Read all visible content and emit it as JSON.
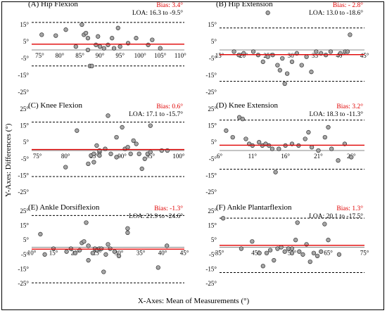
{
  "figure": {
    "y_axis_label": "Y-Axes: Differences (°)",
    "x_axis_label": "X-Axes: Mean of Measurements (°)"
  },
  "colors": {
    "bias": "#e00000",
    "point_fill": "#a6a6a6",
    "zero": "#888888"
  },
  "chart_data": [
    {
      "type": "scatter",
      "title": "(A) Hip Flexion",
      "bias_label": "Bias: 3.4°",
      "loa_label": "LOA: 16.3 to -9.5°",
      "bias": 3.4,
      "loa_upper": 16.3,
      "loa_lower": -9.5,
      "xlim": [
        73,
        111
      ],
      "ylim": [
        -25,
        25
      ],
      "x_ticks": [
        75,
        80,
        85,
        90,
        95,
        100,
        105,
        110
      ],
      "x_tick_labels": [
        "75°",
        "80°",
        "85°",
        "90°",
        "95°",
        "100°",
        "105°",
        "110°"
      ],
      "y_ticks": [
        15,
        5,
        -5,
        -15,
        -25
      ],
      "y_tick_labels": [
        "15°",
        "5°",
        "-5°",
        "-15°",
        "-25°"
      ],
      "points": [
        [
          75.5,
          9
        ],
        [
          79,
          8.5
        ],
        [
          81.5,
          12
        ],
        [
          84,
          2
        ],
        [
          85.5,
          15
        ],
        [
          86,
          9
        ],
        [
          86.5,
          10
        ],
        [
          87,
          7
        ],
        [
          87,
          0
        ],
        [
          87.5,
          -9.5
        ],
        [
          88,
          -9.5
        ],
        [
          89,
          3
        ],
        [
          89.5,
          8
        ],
        [
          90,
          2
        ],
        [
          91,
          1
        ],
        [
          92,
          3
        ],
        [
          93,
          7
        ],
        [
          93.5,
          1
        ],
        [
          94.5,
          13
        ],
        [
          95,
          2
        ],
        [
          97,
          4
        ],
        [
          99,
          7
        ],
        [
          102,
          3
        ],
        [
          103,
          6
        ],
        [
          105,
          1
        ]
      ]
    },
    {
      "type": "scatter",
      "title": "(B) Hip Extension",
      "bias_label": "Bias: - 2.8°",
      "loa_label": "LOA: 13.0 to -18.6°",
      "bias": -2.8,
      "loa_upper": 13.0,
      "loa_lower": -18.6,
      "xlim": [
        15,
        45
      ],
      "ylim": [
        -25,
        25
      ],
      "x_ticks": [
        15,
        20,
        25,
        30,
        35,
        40,
        45
      ],
      "x_tick_labels": [
        "15°",
        "20°",
        "25°",
        "30°",
        "35°",
        "40°",
        "45°"
      ],
      "y_ticks": [
        15,
        5,
        -5,
        -15,
        -25
      ],
      "y_tick_labels": [
        "15°",
        "5°",
        "-5°",
        "-15°",
        "-25°"
      ],
      "points": [
        [
          18,
          -1
        ],
        [
          19,
          -3
        ],
        [
          20,
          -2
        ],
        [
          22,
          -1
        ],
        [
          23,
          -3
        ],
        [
          24,
          -7
        ],
        [
          25,
          -4
        ],
        [
          26,
          -3
        ],
        [
          27,
          -9
        ],
        [
          27.5,
          -12
        ],
        [
          28,
          -5
        ],
        [
          28.5,
          -20
        ],
        [
          29,
          -14
        ],
        [
          30,
          -7
        ],
        [
          31,
          -2
        ],
        [
          32,
          -9
        ],
        [
          33,
          -4
        ],
        [
          34,
          -13
        ],
        [
          35,
          -1
        ],
        [
          36,
          -2
        ],
        [
          37,
          -3
        ],
        [
          38,
          -1
        ],
        [
          40,
          -2
        ],
        [
          41,
          -1
        ],
        [
          41.5,
          -1
        ],
        [
          42,
          9
        ],
        [
          25,
          22
        ]
      ]
    },
    {
      "type": "scatter",
      "title": "(C) Knee Flexion",
      "bias_label": "Bias: 0.6°",
      "loa_label": "LOA: 17.1 to -15.7°",
      "bias": 0.6,
      "loa_upper": 17.1,
      "loa_lower": -15.7,
      "xlim": [
        74,
        101
      ],
      "ylim": [
        -25,
        25
      ],
      "x_ticks": [
        75,
        80,
        85,
        90,
        95,
        100
      ],
      "x_tick_labels": [
        "75°",
        "80°",
        "85°",
        "90°",
        "95°",
        "100°"
      ],
      "y_ticks": [
        25,
        15,
        5,
        -5,
        -15,
        -25
      ],
      "y_tick_labels": [
        "25°",
        "15°",
        "5°",
        "-5°",
        "-15°",
        "-25°"
      ],
      "points": [
        [
          80,
          -10
        ],
        [
          82,
          12
        ],
        [
          84,
          -8
        ],
        [
          84.5,
          -3
        ],
        [
          85,
          -2
        ],
        [
          85,
          -7
        ],
        [
          85.5,
          3
        ],
        [
          86,
          -1
        ],
        [
          86,
          -3
        ],
        [
          87,
          1
        ],
        [
          87.5,
          21
        ],
        [
          88,
          -2
        ],
        [
          89,
          -4
        ],
        [
          89,
          8
        ],
        [
          90,
          14
        ],
        [
          90.5,
          1
        ],
        [
          91,
          2
        ],
        [
          91.5,
          -2
        ],
        [
          92,
          6
        ],
        [
          92.5,
          4
        ],
        [
          93,
          -2
        ],
        [
          93.5,
          -11
        ],
        [
          94,
          -5
        ],
        [
          94.5,
          -2
        ],
        [
          95,
          -1
        ],
        [
          95,
          15
        ],
        [
          97,
          0
        ],
        [
          98,
          0
        ],
        [
          86,
          0
        ]
      ]
    },
    {
      "type": "scatter",
      "title": "(D) Knee Extension",
      "bias_label": "Bias: 3.2°",
      "loa_label": "LOA: 18.3 to -11.3°",
      "bias": 3.2,
      "loa_upper": 18.3,
      "loa_lower": -11.3,
      "xlim": [
        6,
        28
      ],
      "ylim": [
        -25,
        25
      ],
      "x_ticks": [
        6,
        11,
        16,
        21,
        26
      ],
      "x_tick_labels": [
        "6°",
        "11°",
        "16°",
        "21°",
        "26°"
      ],
      "y_ticks": [
        25,
        15,
        5,
        -5,
        -15,
        -25
      ],
      "y_tick_labels": [
        "25°",
        "15°",
        "5°",
        "-5°",
        "-15°",
        "-25°"
      ],
      "points": [
        [
          7,
          12
        ],
        [
          8,
          8
        ],
        [
          9,
          20
        ],
        [
          9.5,
          19
        ],
        [
          10,
          7
        ],
        [
          10.5,
          4
        ],
        [
          11,
          3
        ],
        [
          12,
          5
        ],
        [
          12.5,
          3
        ],
        [
          13,
          4
        ],
        [
          14,
          1
        ],
        [
          14.5,
          -13
        ],
        [
          15,
          1
        ],
        [
          16,
          3
        ],
        [
          17,
          4
        ],
        [
          18,
          3
        ],
        [
          19,
          7
        ],
        [
          19.5,
          11
        ],
        [
          20,
          2
        ],
        [
          21,
          0
        ],
        [
          22,
          8
        ],
        [
          22.5,
          14
        ],
        [
          23,
          1
        ],
        [
          24,
          -6
        ],
        [
          25,
          4
        ],
        [
          26,
          -4
        ],
        [
          13.5,
          3
        ]
      ]
    },
    {
      "type": "scatter",
      "title": "(E) Ankle Dorsiflexion",
      "bias_label": "Bias: -1.3°",
      "loa_label": "LOA: 21.9 to -24.6°",
      "bias": -1.3,
      "loa_upper": 21.9,
      "loa_lower": -24.6,
      "xlim": [
        10,
        45
      ],
      "ylim": [
        -25,
        25
      ],
      "x_ticks": [
        10,
        15,
        20,
        25,
        30,
        35,
        40,
        45
      ],
      "x_tick_labels": [
        "10°",
        "15°",
        "20°",
        "25°",
        "30°",
        "35°",
        "40°",
        "45°"
      ],
      "y_ticks": [
        25,
        15,
        5,
        -5,
        -15,
        -25
      ],
      "y_tick_labels": [
        "25°",
        "15°",
        "5°",
        "-5°",
        "-15°",
        "-25°"
      ],
      "points": [
        [
          12,
          9
        ],
        [
          13,
          -5
        ],
        [
          15,
          -1
        ],
        [
          18,
          -3
        ],
        [
          19,
          -1
        ],
        [
          20,
          -4
        ],
        [
          21,
          -2
        ],
        [
          21.5,
          3
        ],
        [
          22,
          4
        ],
        [
          22.5,
          17
        ],
        [
          23,
          -9
        ],
        [
          24,
          -4
        ],
        [
          24.5,
          -1
        ],
        [
          25,
          -2
        ],
        [
          25.5,
          -1
        ],
        [
          26,
          -1
        ],
        [
          26.5,
          -17
        ],
        [
          27,
          -5
        ],
        [
          27.5,
          2
        ],
        [
          28,
          -1
        ],
        [
          29,
          -3
        ],
        [
          30,
          -6
        ],
        [
          32,
          13
        ],
        [
          32,
          10
        ],
        [
          39,
          -14
        ],
        [
          41,
          1
        ],
        [
          23,
          1
        ]
      ]
    },
    {
      "type": "scatter",
      "title": "(F) Ankle Plantarflexion",
      "bias_label": "Bias: 1.3°",
      "loa_label": "LOA: 20.1 to -17.5°",
      "bias": 1.3,
      "loa_upper": 20.1,
      "loa_lower": -17.5,
      "xlim": [
        35,
        75
      ],
      "ylim": [
        -25,
        25
      ],
      "x_ticks": [
        35,
        45,
        55,
        65,
        75
      ],
      "x_tick_labels": [
        "35°",
        "45°",
        "55°",
        "65°",
        "75°"
      ],
      "y_ticks": [
        25,
        15,
        5,
        -5,
        -15,
        -25
      ],
      "y_tick_labels": [
        "25°",
        "15°",
        "5°",
        "-5°",
        "-15°",
        "-25°"
      ],
      "points": [
        [
          36,
          20
        ],
        [
          41,
          -1
        ],
        [
          44,
          4
        ],
        [
          46,
          -4
        ],
        [
          47,
          -13
        ],
        [
          48,
          -4
        ],
        [
          49,
          -2
        ],
        [
          50,
          -9
        ],
        [
          51,
          -1
        ],
        [
          52,
          0
        ],
        [
          53,
          -3
        ],
        [
          54,
          -1
        ],
        [
          55,
          -4
        ],
        [
          56,
          5
        ],
        [
          56.5,
          17
        ],
        [
          57,
          -3
        ],
        [
          58,
          -5
        ],
        [
          59,
          2
        ],
        [
          60,
          -10
        ],
        [
          61,
          -4
        ],
        [
          62,
          -6
        ],
        [
          63,
          -3
        ],
        [
          64,
          16
        ],
        [
          65,
          5
        ],
        [
          68,
          -5
        ],
        [
          55,
          -1
        ]
      ]
    }
  ]
}
